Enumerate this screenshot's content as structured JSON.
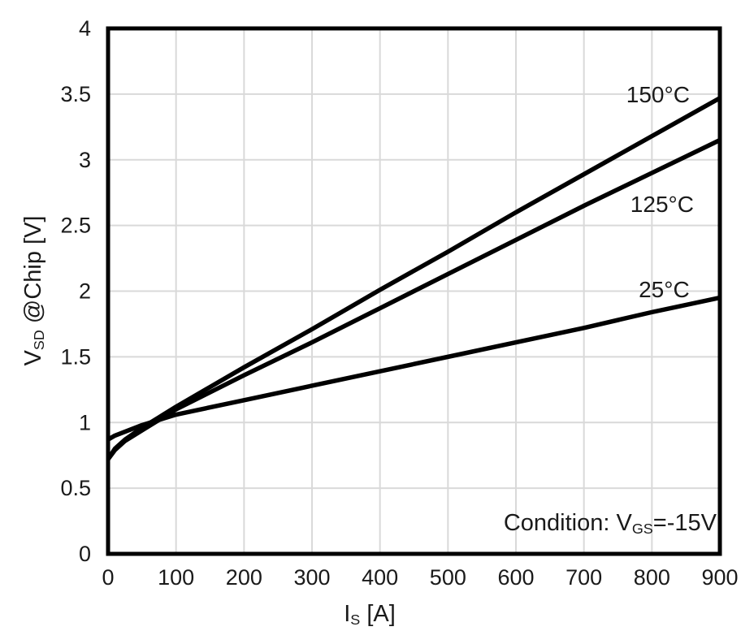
{
  "figure": {
    "y_axis_title": {
      "main": "V",
      "sub": "SD",
      "rest": " @Chip [V]"
    },
    "x_axis_title": {
      "main": "I",
      "sub": "S",
      "rest": " [A]"
    },
    "condition": {
      "prefix": "Condition: V",
      "sub": "GS",
      "suffix": "=-15V"
    }
  },
  "chart_data": {
    "type": "line",
    "title": "",
    "xlabel": "Is [A]",
    "ylabel": "Vsd @Chip [V]",
    "annotation": "Condition: Vgs=-15V",
    "xlim": [
      0,
      900
    ],
    "ylim": [
      0,
      4
    ],
    "x_ticks": [
      0,
      100,
      200,
      300,
      400,
      500,
      600,
      700,
      800,
      900
    ],
    "y_ticks": [
      0,
      0.5,
      1,
      1.5,
      2,
      2.5,
      3,
      3.5,
      4
    ],
    "y_tick_labels": [
      "0",
      "0.5",
      "1",
      "1.5",
      "2",
      "2.5",
      "3",
      "3.5",
      "4"
    ],
    "grid": true,
    "legend_position": "inline-labels",
    "grid_color": "#d9d9d9",
    "line_color": "#000000",
    "series": [
      {
        "name": "150°C",
        "x": [
          0,
          10,
          25,
          50,
          75,
          100,
          200,
          300,
          400,
          500,
          600,
          700,
          800,
          900
        ],
        "y": [
          0.72,
          0.8,
          0.87,
          0.96,
          1.04,
          1.12,
          1.42,
          1.71,
          2.01,
          2.3,
          2.6,
          2.89,
          3.18,
          3.47
        ]
      },
      {
        "name": "125°C",
        "x": [
          0,
          10,
          25,
          50,
          75,
          100,
          200,
          300,
          400,
          500,
          600,
          700,
          800,
          900
        ],
        "y": [
          0.72,
          0.79,
          0.86,
          0.94,
          1.02,
          1.1,
          1.36,
          1.61,
          1.87,
          2.13,
          2.39,
          2.65,
          2.9,
          3.15
        ]
      },
      {
        "name": "25°C",
        "x": [
          0,
          10,
          25,
          50,
          75,
          100,
          200,
          300,
          400,
          500,
          600,
          700,
          800,
          900
        ],
        "y": [
          0.87,
          0.9,
          0.93,
          0.98,
          1.02,
          1.06,
          1.17,
          1.28,
          1.39,
          1.5,
          1.61,
          1.72,
          1.84,
          1.95
        ]
      }
    ],
    "series_labels": [
      {
        "text": "150°C",
        "x": 809,
        "y": 3.49
      },
      {
        "text": "125°C",
        "x": 815,
        "y": 2.66
      },
      {
        "text": "25°C",
        "x": 818,
        "y": 2.01
      }
    ]
  }
}
